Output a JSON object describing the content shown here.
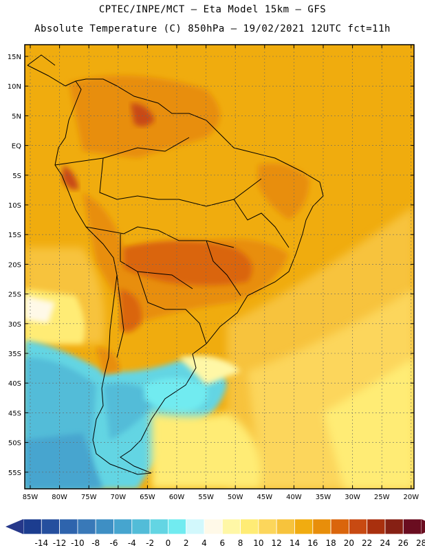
{
  "header": {
    "line1": "CPTEC/INPE/MCT –  Eta Model 15km – GFS",
    "line2": "Absolute Temperature (C) 850hPa – 19/02/2021 12UTC fct=11h"
  },
  "map": {
    "lat_ticks": [
      "15N",
      "10N",
      "5N",
      "EQ",
      "5S",
      "10S",
      "15S",
      "20S",
      "25S",
      "30S",
      "35S",
      "40S",
      "45S",
      "50S",
      "55S"
    ],
    "lon_ticks": [
      "85W",
      "80W",
      "75W",
      "70W",
      "65W",
      "60W",
      "55W",
      "50W",
      "45W",
      "40W",
      "35W",
      "30W",
      "25W",
      "20W"
    ]
  },
  "colorbar": {
    "labels": [
      "-14",
      "-12",
      "-10",
      "-8",
      "-6",
      "-4",
      "-2",
      "0",
      "2",
      "4",
      "6",
      "8",
      "10",
      "12",
      "14",
      "16",
      "18",
      "20",
      "22",
      "24",
      "26",
      "28"
    ],
    "colors": [
      "#1c3d8f",
      "#254f9e",
      "#2e64ad",
      "#3979b8",
      "#3e8fc4",
      "#46a5cf",
      "#52bcd8",
      "#63d5e3",
      "#71ebf0",
      "#d2f8fc",
      "#fff9e8",
      "#fff7a6",
      "#ffec75",
      "#fcd65b",
      "#f7c33c",
      "#f1ac10",
      "#e88e0a",
      "#da650c",
      "#c84a12",
      "#a9300e",
      "#862014",
      "#6a0d20"
    ],
    "end_low": "#26388a",
    "end_high": "#6a0d20"
  }
}
